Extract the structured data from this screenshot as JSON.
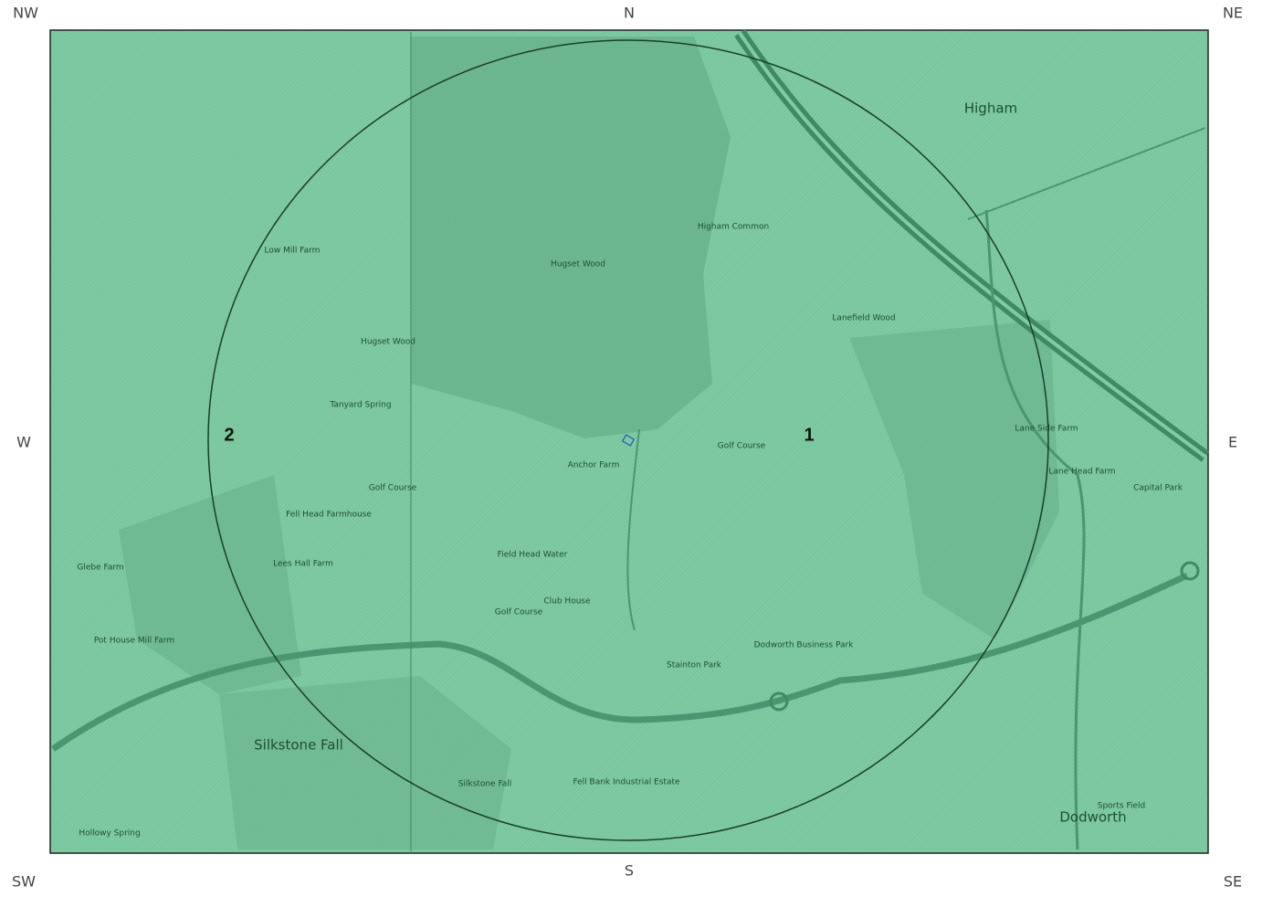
{
  "compass": {
    "nw": "NW",
    "n": "N",
    "ne": "NE",
    "w": "W",
    "e": "E",
    "sw": "SW",
    "s": "S",
    "se": "SE"
  },
  "zones": [
    "1",
    "2"
  ],
  "places": [
    "Higham",
    "Hugset Wood",
    "Higham Common",
    "Low Mill Farm",
    "Hugset Wood",
    "Tanyard Spring",
    "Golf Course",
    "Fell Head Farmhouse",
    "Lees Hall Farm",
    "Field Head Water",
    "Golf Course",
    "Club House",
    "Lanefield Wood",
    "Golf Course",
    "Lane Side Farm",
    "Lane Head Farm",
    "Capital Park",
    "Dodworth Business Park",
    "Stainton Park",
    "Silkstone Fall",
    "Fell Bank Industrial Estate",
    "Dodworth",
    "Glebe Farm",
    "Pot House Mill Farm",
    "Silkstone Fall",
    "Sports Field",
    "Hollowy Spring",
    "Anchor Farm"
  ]
}
